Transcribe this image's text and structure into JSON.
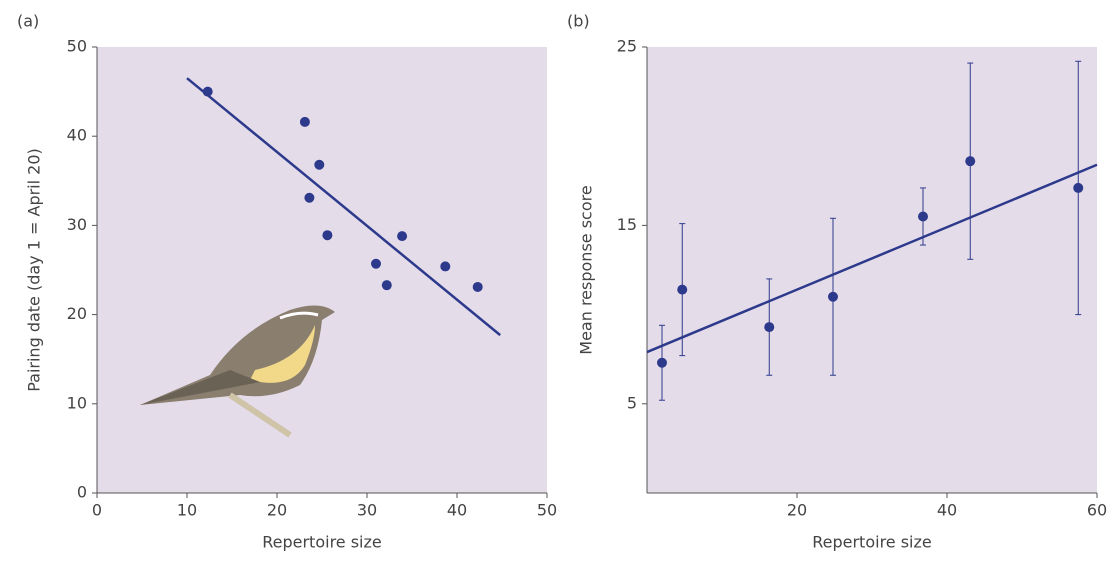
{
  "chart_data": [
    {
      "type": "scatter",
      "panel": "(a)",
      "xlabel": "Repertoire size",
      "ylabel": "Pairing date (day 1 = April 20)",
      "x": [
        12.3,
        23.1,
        23.6,
        24.7,
        25.6,
        31.0,
        32.2,
        33.9,
        38.7,
        42.3
      ],
      "values": [
        45.0,
        41.6,
        33.1,
        36.8,
        28.9,
        25.7,
        23.3,
        28.8,
        25.4,
        23.1
      ],
      "fit": {
        "x": [
          10,
          44.8
        ],
        "y": [
          46.5,
          17.7
        ]
      },
      "xlim": [
        0,
        50
      ],
      "ylim": [
        0,
        50
      ],
      "xticks": [
        0,
        10,
        20,
        30,
        40,
        50
      ],
      "yticks": [
        0,
        10,
        20,
        30,
        40,
        50
      ],
      "color": "#2d3a8c"
    },
    {
      "type": "errorbar",
      "panel": "(b)",
      "xlabel": "Repertoire size",
      "ylabel": "Mean response score",
      "x": [
        2,
        4.7,
        16.3,
        24.8,
        36.8,
        43.1,
        57.5
      ],
      "values": [
        7.3,
        11.4,
        9.3,
        11.0,
        15.5,
        18.6,
        17.1
      ],
      "errors": [
        2.1,
        3.7,
        2.7,
        4.4,
        1.6,
        5.5,
        7.1
      ],
      "fit": {
        "x": [
          0,
          60
        ],
        "y": [
          7.9,
          18.4
        ]
      },
      "xlim": [
        0,
        60
      ],
      "ylim": [
        0,
        25
      ],
      "xticks": [
        20,
        40,
        60
      ],
      "yticks": [
        5,
        15,
        25
      ],
      "color": "#2d3a8c"
    }
  ]
}
